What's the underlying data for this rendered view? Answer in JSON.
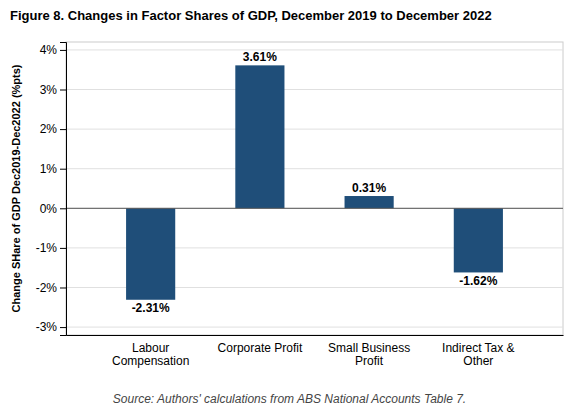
{
  "chart_data": {
    "type": "bar",
    "title": "Figure 8. Changes in Factor Shares of GDP, December 2019 to December 2022",
    "categories": [
      "Labour\nCompensation",
      "Corporate Profit",
      "Small Business\nProfit",
      "Indirect Tax &\nOther"
    ],
    "values": [
      -2.31,
      3.61,
      0.31,
      -1.62
    ],
    "value_labels": [
      "-2.31%",
      "3.61%",
      "0.31%",
      "-1.62%"
    ],
    "data_labels": true,
    "color": "#1F4E79",
    "ylabel": "Change SHare of GDP Dec2019-Dec2022 (%pts)",
    "ylim": [
      -3.2,
      4.2
    ],
    "yticks": [
      {
        "value": -3,
        "label": "-3%"
      },
      {
        "value": -2,
        "label": "-2%"
      },
      {
        "value": -1,
        "label": "-1%"
      },
      {
        "value": 0,
        "label": "0%"
      },
      {
        "value": 1,
        "label": "1%"
      },
      {
        "value": 2,
        "label": "2%"
      },
      {
        "value": 3,
        "label": "3%"
      },
      {
        "value": 4,
        "label": "4%"
      }
    ],
    "grid": true,
    "source": "Source: Authors' calculations from ABS National Accounts Table 7."
  }
}
